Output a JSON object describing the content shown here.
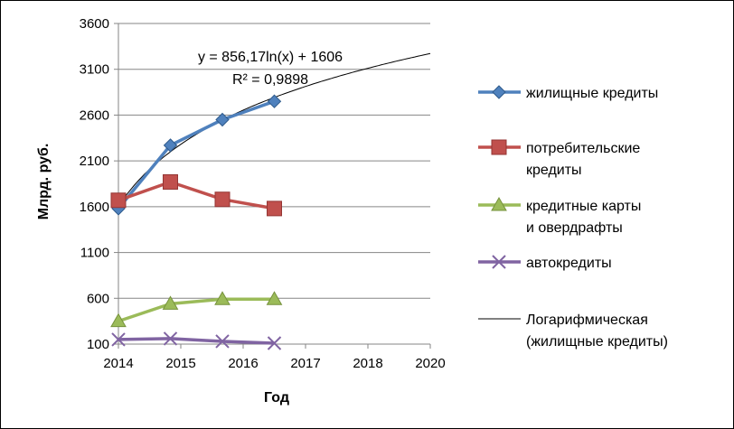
{
  "chart_data": {
    "type": "line",
    "title": "",
    "xlabel": "Год",
    "ylabel": "Млрд. руб.",
    "x": [
      2014,
      2015,
      2016,
      2017
    ],
    "x_ticks": [
      "2014",
      "2015",
      "2016",
      "2017",
      "2018",
      "2020"
    ],
    "xlim": [
      2014,
      2020
    ],
    "ylim": [
      100,
      3600
    ],
    "y_ticks": [
      100,
      600,
      1100,
      1600,
      2100,
      2600,
      3100,
      3600
    ],
    "grid": true,
    "legend_position": "right",
    "series": [
      {
        "name": "жилищные кредиты",
        "values": [
          1580,
          2270,
          2550,
          2750
        ],
        "color": "#4F81BD",
        "marker": "diamond"
      },
      {
        "name": "потребительские кредиты",
        "values": [
          1670,
          1870,
          1680,
          1580
        ],
        "color": "#C0504D",
        "marker": "square"
      },
      {
        "name": "кредитные карты и овердрафты",
        "values": [
          350,
          540,
          590,
          590
        ],
        "color": "#9BBB59",
        "marker": "triangle"
      },
      {
        "name": "автокредиты",
        "values": [
          150,
          160,
          130,
          110
        ],
        "color": "#8064A2",
        "marker": "x"
      }
    ],
    "trendline": {
      "name": "Логарифмическая (жилищные кредиты)",
      "series": "жилищные кредиты",
      "a": 856.17,
      "b": 1606,
      "x_end": 2020,
      "color": "#000000",
      "equation_text": "y = 856,17ln(x) + 1606",
      "r2_text": "R² = 0,9898"
    },
    "legend": [
      {
        "lines": [
          "жилищные кредиты"
        ],
        "series": 0
      },
      {
        "lines": [
          "потребительские",
          "кредиты"
        ],
        "series": 1
      },
      {
        "lines": [
          "кредитные карты",
          "и овердрафты"
        ],
        "series": 2
      },
      {
        "lines": [
          "автокредиты"
        ],
        "series": 3
      },
      {
        "lines": [
          "Логарифмическая",
          "(жилищные кредиты)"
        ],
        "trend": true
      }
    ]
  }
}
